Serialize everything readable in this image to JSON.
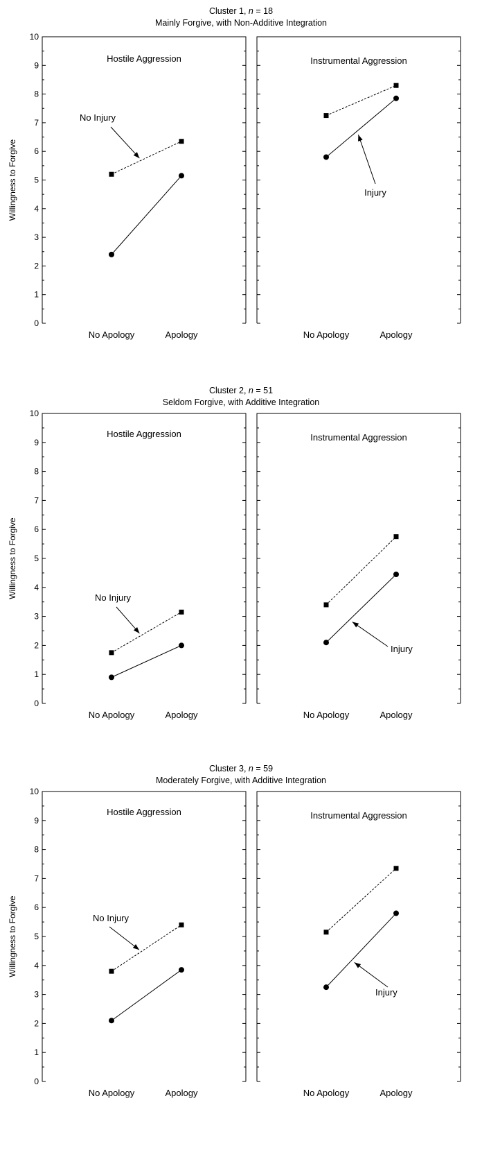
{
  "chart_data": [
    {
      "type": "line",
      "title": "Cluster 1, n = 18",
      "title_parts": [
        "Cluster 1, ",
        "n",
        " = 18"
      ],
      "subtitle": "Mainly Forgive, with Non-Additive Integration",
      "ylabel": "Willingness to Forgive",
      "ylim": [
        0,
        10
      ],
      "yticks": [
        "0",
        "1",
        "2",
        "3",
        "4",
        "5",
        "6",
        "7",
        "8",
        "9",
        "10"
      ],
      "categories": [
        "No Apology",
        "Apology"
      ],
      "panels": [
        {
          "title": "Hostile Aggression",
          "series": [
            {
              "name": "No Injury",
              "style": "dashed",
              "marker": "square",
              "values": [
                5.2,
                6.35
              ]
            },
            {
              "name": "Injury",
              "style": "solid",
              "marker": "circle",
              "values": [
                2.4,
                5.15
              ]
            }
          ],
          "annotation": {
            "text": "No Injury",
            "series": 0
          }
        },
        {
          "title": "Instrumental Aggression",
          "series": [
            {
              "name": "No Injury",
              "style": "dashed",
              "marker": "square",
              "values": [
                7.25,
                8.3
              ]
            },
            {
              "name": "Injury",
              "style": "solid",
              "marker": "circle",
              "values": [
                5.8,
                7.85
              ]
            }
          ],
          "annotation": {
            "text": "Injury",
            "series": 1
          }
        }
      ]
    },
    {
      "type": "line",
      "title": "Cluster 2, n = 51",
      "title_parts": [
        "Cluster 2, ",
        "n",
        " = 51"
      ],
      "subtitle": "Seldom Forgive, with Additive Integration",
      "ylabel": "Willingness to Forgive",
      "ylim": [
        0,
        10
      ],
      "yticks": [
        "0",
        "1",
        "2",
        "3",
        "4",
        "5",
        "6",
        "7",
        "8",
        "9",
        "10"
      ],
      "categories": [
        "No Apology",
        "Apology"
      ],
      "panels": [
        {
          "title": "Hostile Aggression",
          "series": [
            {
              "name": "No Injury",
              "style": "dashed",
              "marker": "square",
              "values": [
                1.75,
                3.15
              ]
            },
            {
              "name": "Injury",
              "style": "solid",
              "marker": "circle",
              "values": [
                0.9,
                2.0
              ]
            }
          ],
          "annotation": {
            "text": "No Injury",
            "series": 0
          }
        },
        {
          "title": "Instrumental Aggression",
          "series": [
            {
              "name": "No Injury",
              "style": "dashed",
              "marker": "square",
              "values": [
                3.4,
                5.75
              ]
            },
            {
              "name": "Injury",
              "style": "solid",
              "marker": "circle",
              "values": [
                2.1,
                4.45
              ]
            }
          ],
          "annotation": {
            "text": "Injury",
            "series": 1
          }
        }
      ]
    },
    {
      "type": "line",
      "title": "Cluster 3, n = 59",
      "title_parts": [
        "Cluster 3, ",
        "n",
        " = 59"
      ],
      "subtitle": "Moderately Forgive, with Additive Integration",
      "ylabel": "Willingness to Forgive",
      "ylim": [
        0,
        10
      ],
      "yticks": [
        "0",
        "1",
        "2",
        "3",
        "4",
        "5",
        "6",
        "7",
        "8",
        "9",
        "10"
      ],
      "categories": [
        "No Apology",
        "Apology"
      ],
      "panels": [
        {
          "title": "Hostile Aggression",
          "series": [
            {
              "name": "No Injury",
              "style": "dashed",
              "marker": "square",
              "values": [
                3.8,
                5.4
              ]
            },
            {
              "name": "Injury",
              "style": "solid",
              "marker": "circle",
              "values": [
                2.1,
                3.85
              ]
            }
          ],
          "annotation": {
            "text": "No Injury",
            "series": 0
          }
        },
        {
          "title": "Instrumental Aggression",
          "series": [
            {
              "name": "No Injury",
              "style": "dashed",
              "marker": "square",
              "values": [
                5.15,
                7.35
              ]
            },
            {
              "name": "Injury",
              "style": "solid",
              "marker": "circle",
              "values": [
                3.25,
                5.8
              ]
            }
          ],
          "annotation": {
            "text": "Injury",
            "series": 1
          }
        }
      ]
    }
  ]
}
